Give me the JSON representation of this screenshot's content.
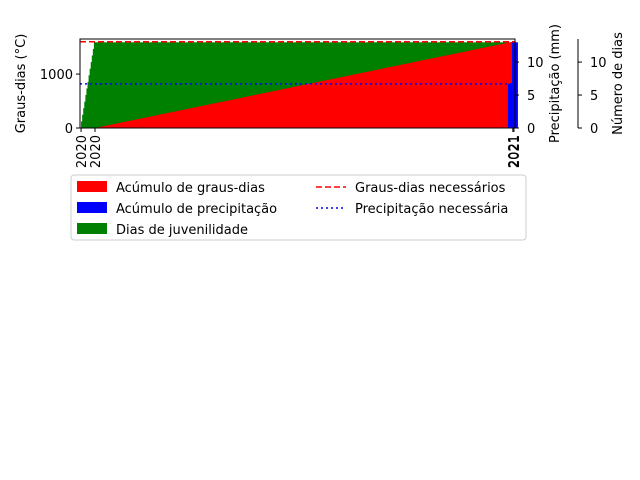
{
  "chart_data": {
    "type": "bar",
    "y_left_label": "Graus-dias (°C)",
    "y_right1_label": "Precipitação (mm)",
    "y_right2_label": "Número de dias",
    "y_left_ticks": [
      "0",
      "1000"
    ],
    "y_left_range": [
      0,
      1650
    ],
    "y_right_range": [
      0,
      13.5
    ],
    "y_right1_ticks": [
      "0",
      "5",
      "10"
    ],
    "y_right2_ticks": [
      "0",
      "5",
      "10"
    ],
    "x_tick_labels": [
      "2020",
      "2020",
      "2021",
      "2021"
    ],
    "x_tick_dates": [
      "2020-01-01",
      "2020-01-14",
      "2021-02-07",
      "2021-02-08"
    ],
    "x_range": [
      "2019-12-31",
      "2021-02-09"
    ],
    "juvenility": {
      "start": "2020-01-01",
      "ramp_end": "2020-01-13",
      "end": "2021-02-07",
      "max_days": 13,
      "color": "#008000"
    },
    "degree_days": {
      "start": "2020-01-14",
      "end": "2021-02-07",
      "start_value": 0,
      "end_value": 1600,
      "color": "#ff0000"
    },
    "precipitation": {
      "date": "2021-02-08",
      "value": 13,
      "partial": 6.7,
      "color": "#0000ff"
    },
    "required_degree_days": {
      "value": 1600,
      "color": "#ff0000",
      "style": "dashed"
    },
    "required_precipitation": {
      "value": 6.7,
      "color": "#0000ff",
      "style": "dotted"
    },
    "legend": {
      "placement": "below",
      "items": [
        {
          "label": "Acúmulo de graus-dias",
          "kind": "patch",
          "color": "#ff0000"
        },
        {
          "label": "Acúmulo de precipitação",
          "kind": "patch",
          "color": "#0000ff"
        },
        {
          "label": "Dias de juvenilidade",
          "kind": "patch",
          "color": "#008000"
        },
        {
          "label": "Graus-dias necessários",
          "kind": "line",
          "color": "#ff0000",
          "dash": "6,3"
        },
        {
          "label": "Precipitação necessária",
          "kind": "line",
          "color": "#0000ff",
          "dash": "2,3"
        }
      ]
    }
  }
}
